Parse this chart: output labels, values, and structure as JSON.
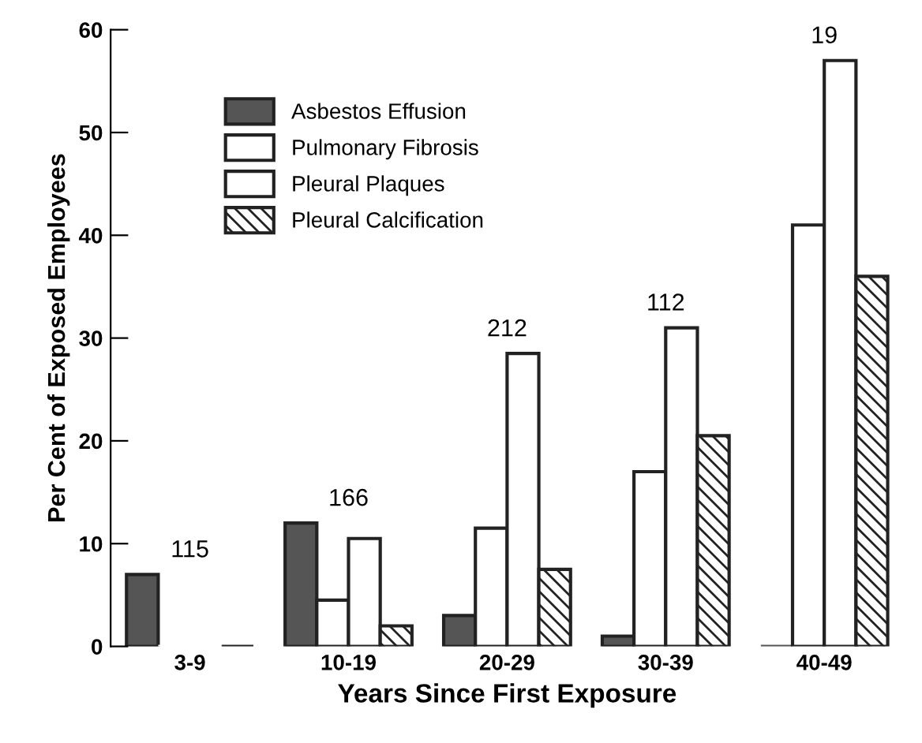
{
  "chart_data": {
    "type": "bar",
    "xlabel": "Years Since First Exposure",
    "ylabel": "Per Cent of Exposed Employees",
    "categories": [
      "3-9",
      "10-19",
      "20-29",
      "30-39",
      "40-49"
    ],
    "series": [
      {
        "name": "Asbestos Effusion",
        "color": "#555555",
        "values": [
          7,
          12,
          3,
          1,
          0
        ]
      },
      {
        "name": "Pulmonary Fibrosis",
        "color": "#ffffff",
        "values": [
          0,
          4.5,
          11.5,
          17,
          41
        ]
      },
      {
        "name": "Pleural Plaques",
        "color": "#ffffff",
        "values": [
          0,
          10.5,
          28.5,
          31,
          57
        ]
      },
      {
        "name": "Pleural Calcification",
        "color": "#222222",
        "values": [
          0,
          2,
          7.5,
          20.5,
          36
        ]
      }
    ],
    "ylim": [
      0,
      60
    ],
    "yticks": [
      0,
      10,
      20,
      30,
      40,
      50,
      60
    ],
    "grid": false,
    "legend": "top left",
    "annotations": [
      "115",
      "166",
      "212",
      "112",
      "19"
    ]
  }
}
